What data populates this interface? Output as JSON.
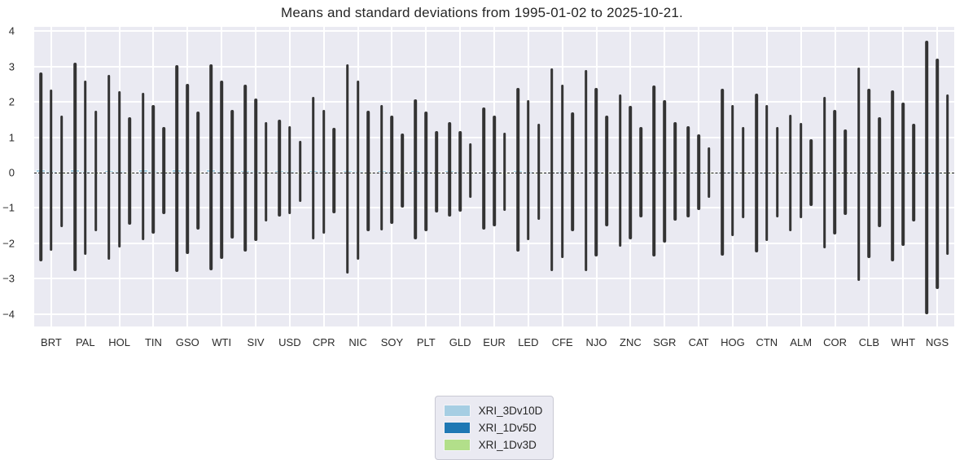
{
  "chart_data": {
    "type": "bar",
    "title": "Means and standard deviations from 1995-01-02 to 2025-10-21.",
    "xlabel": "",
    "ylabel": "",
    "ylim": [
      -4.35,
      4.12
    ],
    "yticks": [
      4,
      3,
      2,
      1,
      0,
      -1,
      -2,
      -3,
      -4
    ],
    "grid": true,
    "zero_line_dashed": true,
    "legend_position": "below-center",
    "plot_bg_color": "#eaeaf2",
    "error_bar_color": "#333333",
    "categories": [
      "BRT",
      "PAL",
      "HOL",
      "TIN",
      "GSO",
      "WTI",
      "SIV",
      "USD",
      "CPR",
      "NIC",
      "SOY",
      "PLT",
      "GLD",
      "EUR",
      "LED",
      "CFE",
      "NJO",
      "ZNC",
      "SGR",
      "CAT",
      "HOG",
      "CTN",
      "ALM",
      "COR",
      "CLB",
      "WHT",
      "NGS"
    ],
    "series": [
      {
        "name": "XRI_3Dv10D",
        "color": "#a6cee3",
        "means": [
          0.09,
          0.09,
          0.08,
          0.09,
          0.09,
          0.09,
          0.08,
          0.08,
          0.07,
          0.08,
          0.06,
          0.06,
          0.06,
          0.04,
          0.06,
          0.04,
          0.03,
          0.05,
          0.05,
          0.02,
          0.03,
          0.02,
          0.01,
          0.01,
          0.01,
          -0.04,
          -0.08
        ],
        "err_hi": [
          2.82,
          3.1,
          2.77,
          2.26,
          3.04,
          3.06,
          2.49,
          1.5,
          2.15,
          3.07,
          1.91,
          2.08,
          1.42,
          1.84,
          2.4,
          2.94,
          2.9,
          2.21,
          2.47,
          1.31,
          2.36,
          2.24,
          1.63,
          2.13,
          2.97,
          2.32,
          3.72
        ],
        "err_lo": [
          -2.5,
          -2.78,
          -2.47,
          -1.91,
          -2.8,
          -2.77,
          -2.24,
          -1.25,
          -1.89,
          -2.86,
          -1.63,
          -1.88,
          -1.25,
          -1.62,
          -2.24,
          -2.78,
          -2.79,
          -2.09,
          -2.36,
          -1.26,
          -2.35,
          -2.25,
          -1.66,
          -2.14,
          -3.06,
          -2.51,
          -4.0
        ]
      },
      {
        "name": "XRI_1Dv5D",
        "color": "#1f78b4",
        "means": [
          0.05,
          0.05,
          0.04,
          0.05,
          0.05,
          0.05,
          0.04,
          0.04,
          0.04,
          0.04,
          0.03,
          0.03,
          0.03,
          0.02,
          0.03,
          0.02,
          0.02,
          0.03,
          0.03,
          0.01,
          0.02,
          0.01,
          0.005,
          0.005,
          0.005,
          -0.02,
          -0.04
        ],
        "err_hi": [
          2.35,
          2.6,
          2.3,
          1.9,
          2.51,
          2.6,
          2.09,
          1.32,
          1.78,
          2.6,
          1.61,
          1.73,
          1.18,
          1.61,
          2.05,
          2.49,
          2.4,
          1.88,
          2.05,
          1.09,
          1.92,
          1.9,
          1.4,
          1.78,
          2.38,
          1.99,
          3.22
        ],
        "err_lo": [
          -2.2,
          -2.32,
          -2.12,
          -1.73,
          -2.3,
          -2.43,
          -1.93,
          -1.18,
          -1.72,
          -2.46,
          -1.44,
          -1.66,
          -1.1,
          -1.52,
          -1.92,
          -2.41,
          -2.36,
          -1.89,
          -1.98,
          -1.05,
          -1.79,
          -1.93,
          -1.3,
          -1.76,
          -2.41,
          -2.08,
          -3.3
        ]
      },
      {
        "name": "XRI_1Dv3D",
        "color": "#b2df8a",
        "means": [
          0.01,
          0.01,
          0.01,
          0.015,
          0.01,
          0.015,
          0.01,
          0.01,
          0.01,
          0.01,
          0.01,
          0.01,
          0.01,
          0.005,
          0.01,
          0.005,
          0.005,
          0.01,
          0.01,
          0.005,
          0.005,
          0.005,
          0.0,
          0.0,
          0.0,
          -0.005,
          -0.01
        ],
        "err_hi": [
          1.62,
          1.75,
          1.57,
          1.28,
          1.72,
          1.78,
          1.43,
          0.9,
          1.27,
          1.76,
          1.11,
          1.18,
          0.82,
          1.12,
          1.39,
          1.7,
          1.62,
          1.3,
          1.42,
          0.72,
          1.29,
          1.3,
          0.95,
          1.21,
          1.57,
          1.38,
          2.22
        ],
        "err_lo": [
          -1.55,
          -1.66,
          -1.47,
          -1.18,
          -1.6,
          -1.87,
          -1.37,
          -0.83,
          -1.15,
          -1.66,
          -0.99,
          -1.12,
          -0.72,
          -1.08,
          -1.33,
          -1.65,
          -1.51,
          -1.27,
          -1.35,
          -0.72,
          -1.3,
          -1.27,
          -0.95,
          -1.19,
          -1.54,
          -1.37,
          -2.33
        ]
      }
    ]
  }
}
